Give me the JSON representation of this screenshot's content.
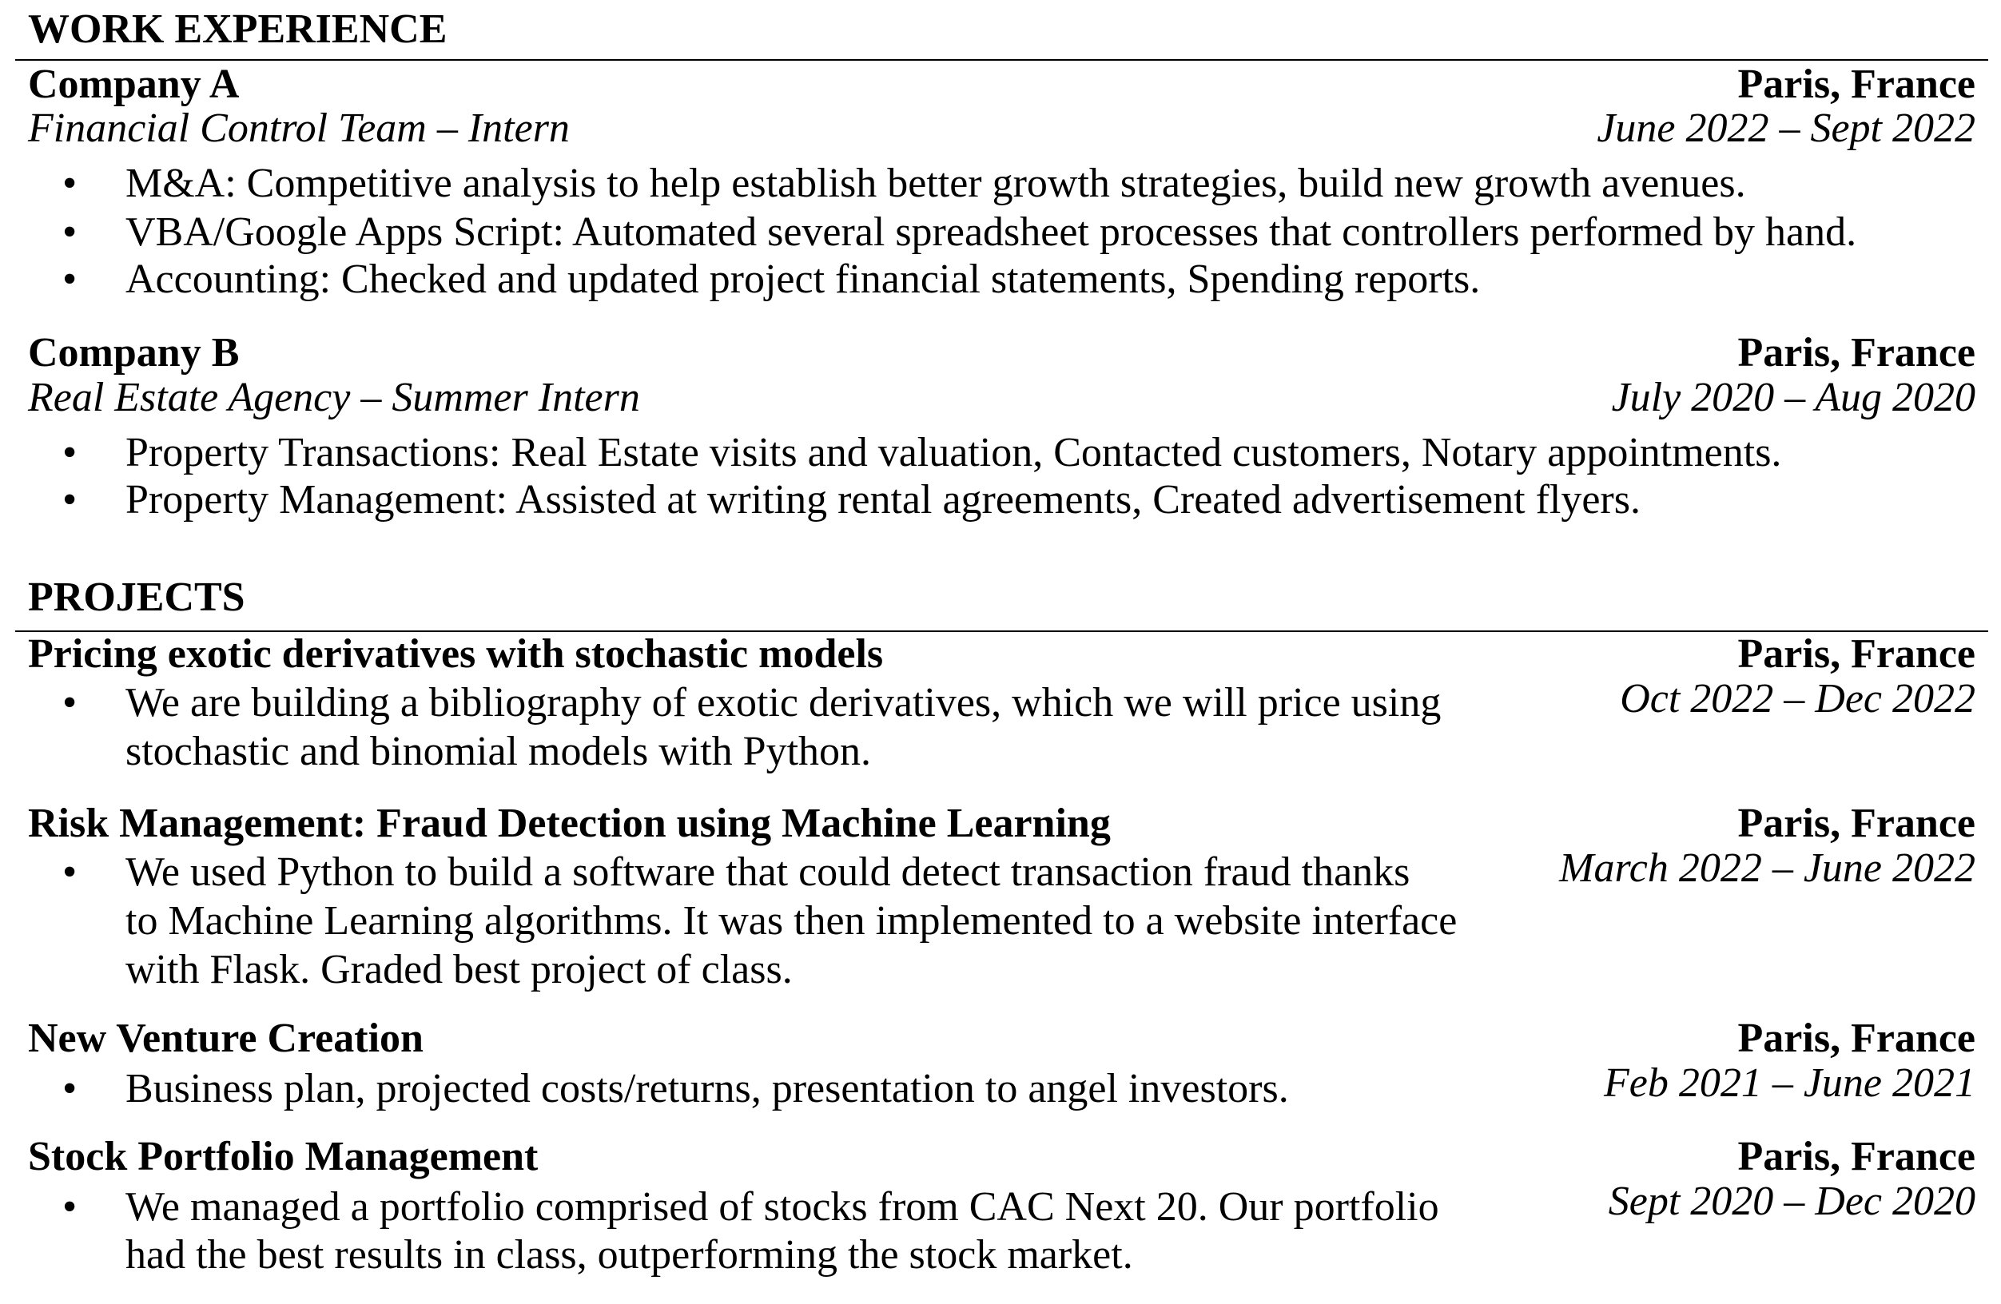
{
  "sections": [
    {
      "title": "WORK EXPERIENCE",
      "entries": [
        {
          "name": "Company A",
          "location": "Paris, France",
          "role": "Financial Control Team – Intern",
          "dates": "June 2022 – Sept 2022",
          "bullets": [
            "M&A: Competitive analysis to help establish better growth strategies, build new growth avenues.",
            "VBA/Google Apps Script: Automated several spreadsheet processes that controllers performed by hand.",
            "Accounting: Checked and updated project financial statements, Spending reports."
          ]
        },
        {
          "name": "Company B",
          "location": "Paris, France",
          "role": "Real Estate Agency – Summer Intern",
          "dates": "July 2020 – Aug 2020",
          "bullets": [
            "Property Transactions: Real Estate visits and valuation, Contacted customers, Notary appointments.",
            "Property Management: Assisted at writing rental agreements, Created advertisement flyers."
          ]
        }
      ]
    },
    {
      "title": "PROJECTS",
      "entries": [
        {
          "name": "Pricing exotic derivatives with stochastic models",
          "location": "Paris, France",
          "dates": "Oct 2022 – Dec 2022",
          "bullet_lines": [
            "We are building a bibliography of exotic derivatives, which we will price using",
            "stochastic and binomial models with Python."
          ]
        },
        {
          "name": "Risk Management: Fraud Detection using Machine Learning",
          "location": "Paris, France",
          "dates": "March 2022 – June 2022",
          "bullet_lines": [
            "We used Python to build a software that could detect transaction fraud thanks",
            "to Machine Learning algorithms. It was then implemented to a website interface",
            "with Flask. Graded best project of class."
          ]
        },
        {
          "name": "New Venture Creation",
          "location": "Paris, France",
          "dates": "Feb 2021 – June 2021",
          "bullet_lines": [
            "Business plan, projected costs/returns, presentation to angel investors."
          ]
        },
        {
          "name": "Stock Portfolio Management",
          "location": "Paris, France",
          "dates": "Sept 2020 – Dec 2020",
          "bullet_lines": [
            "We managed a portfolio comprised of stocks from CAC Next 20. Our portfolio",
            "had the best results in class, outperforming the stock market."
          ]
        }
      ]
    }
  ],
  "bullet_glyph": "•"
}
